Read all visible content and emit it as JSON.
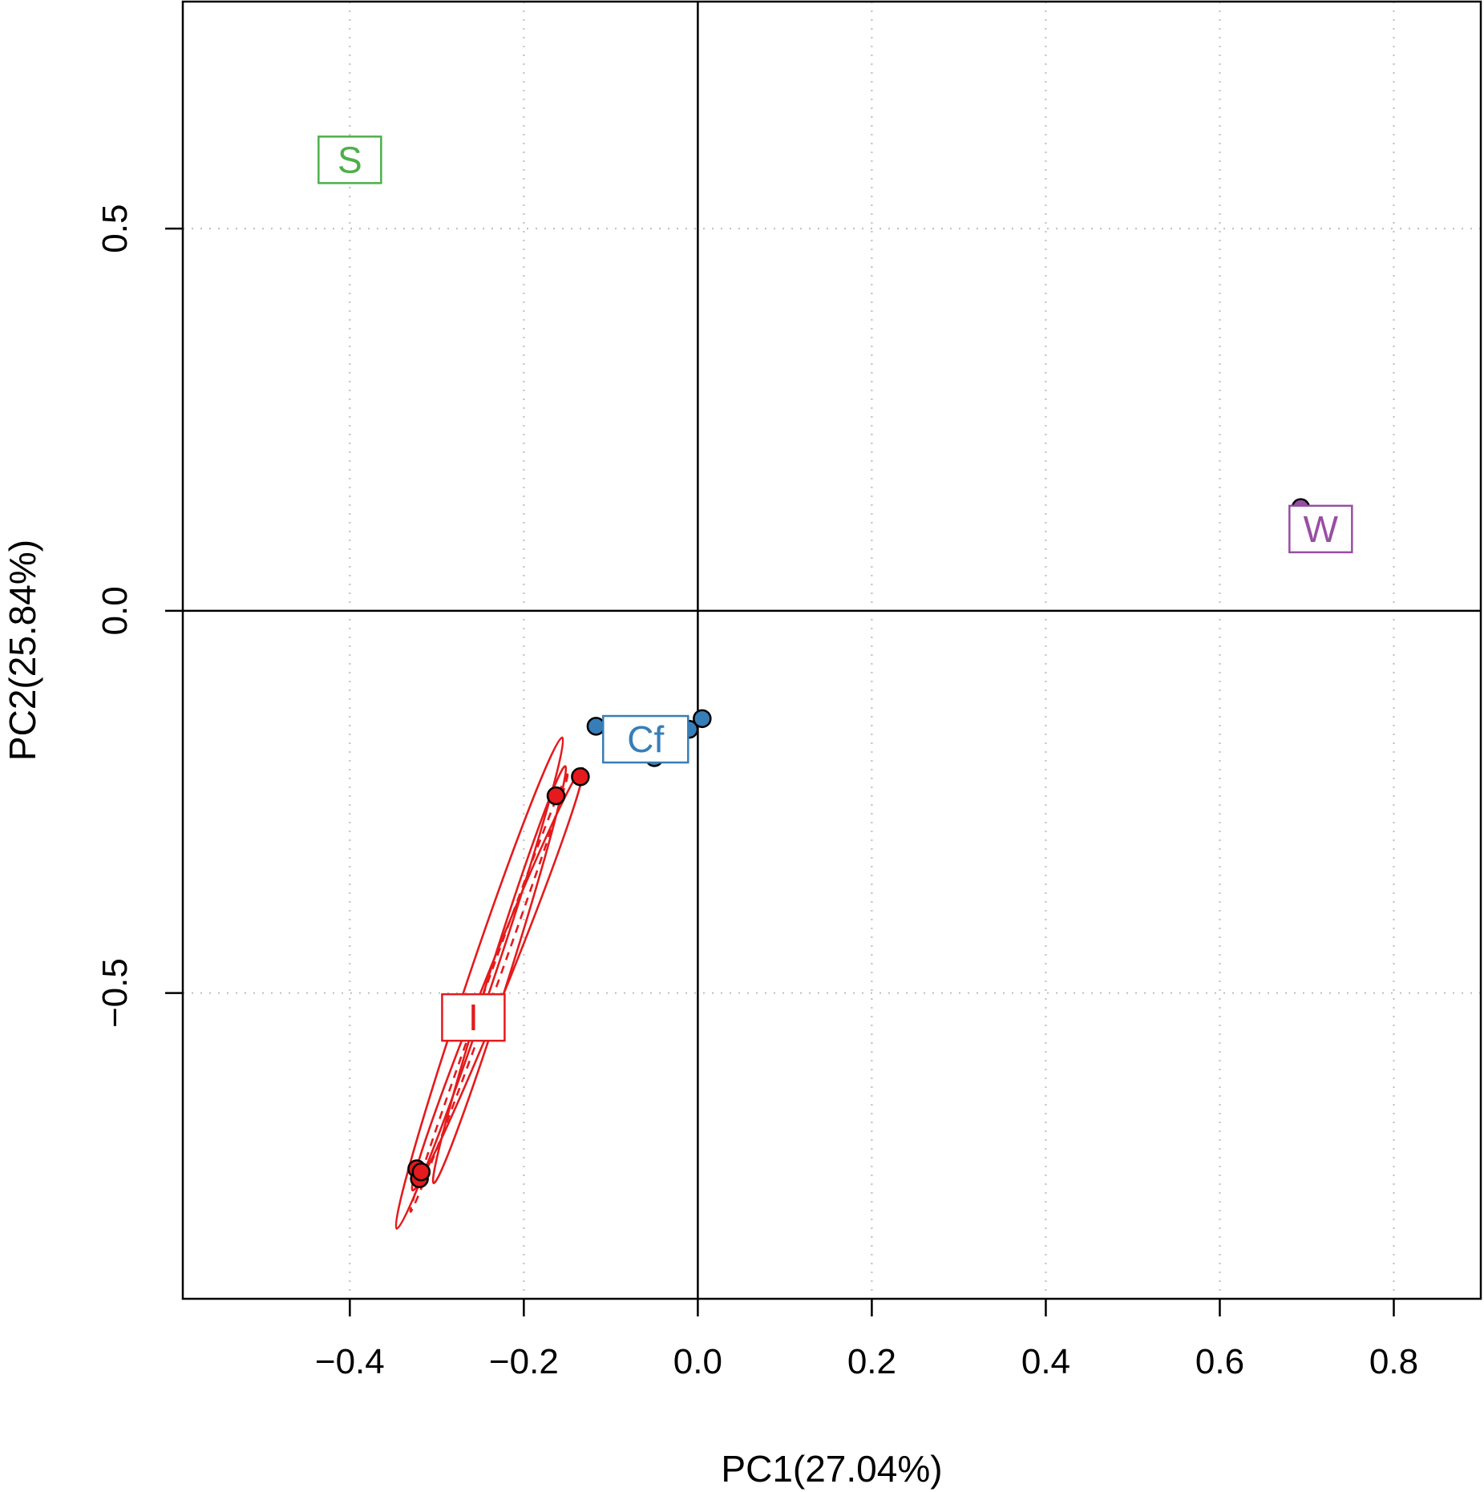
{
  "chart_data": {
    "type": "scatter",
    "title": "",
    "xlabel": "PC1(27.04%)",
    "ylabel": "PC2(25.84%)",
    "xlim": [
      -0.592,
      0.9
    ],
    "ylim": [
      -0.9,
      0.797
    ],
    "x_ticks": [
      -0.4,
      -0.2,
      0.0,
      0.2,
      0.4,
      0.6,
      0.8
    ],
    "y_ticks": [
      -0.5,
      0.0,
      0.5
    ],
    "x_tick_labels": [
      "−0.4",
      "−0.2",
      "0.0",
      "0.2",
      "0.4",
      "0.6",
      "0.8"
    ],
    "y_tick_labels": [
      "−0.5",
      "0.0",
      "0.5"
    ],
    "grid": true,
    "zero_lines": true,
    "groups": [
      {
        "label": "S",
        "color": "#4daf4a",
        "label_pos": [
          -0.4,
          0.59
        ],
        "points": []
      },
      {
        "label": "W",
        "color": "#984ea3",
        "label_pos": [
          0.716,
          0.107
        ],
        "points": [
          [
            0.693,
            0.135
          ]
        ]
      },
      {
        "label": "Cf",
        "color": "#377eb8",
        "label_pos": [
          -0.06,
          -0.168
        ],
        "points": [
          [
            -0.117,
            -0.151
          ],
          [
            -0.05,
            -0.192
          ],
          [
            -0.01,
            -0.155
          ],
          [
            0.005,
            -0.141
          ]
        ]
      },
      {
        "label": "I",
        "color": "#e41a1c",
        "label_pos": [
          -0.258,
          -0.532
        ],
        "points": [
          [
            -0.163,
            -0.242
          ],
          [
            -0.135,
            -0.217
          ],
          [
            -0.323,
            -0.73
          ],
          [
            -0.32,
            -0.743
          ],
          [
            -0.318,
            -0.734
          ]
        ],
        "ellipses": [
          {
            "cx": -0.251,
            "cy": -0.487,
            "rx": 0.335,
            "ry": 0.01,
            "angle_deg": 73.5,
            "dash": false
          },
          {
            "cx": -0.23,
            "cy": -0.482,
            "rx": 0.293,
            "ry": 0.009,
            "angle_deg": 70.5,
            "dash": false
          },
          {
            "cx": -0.228,
            "cy": -0.476,
            "rx": 0.283,
            "ry": 0.008,
            "angle_deg": 74.5,
            "dash": false
          },
          {
            "cx": -0.24,
            "cy": -0.5,
            "rx": 0.3,
            "ry": 0.004,
            "angle_deg": 72.5,
            "dash": true
          }
        ]
      }
    ]
  }
}
